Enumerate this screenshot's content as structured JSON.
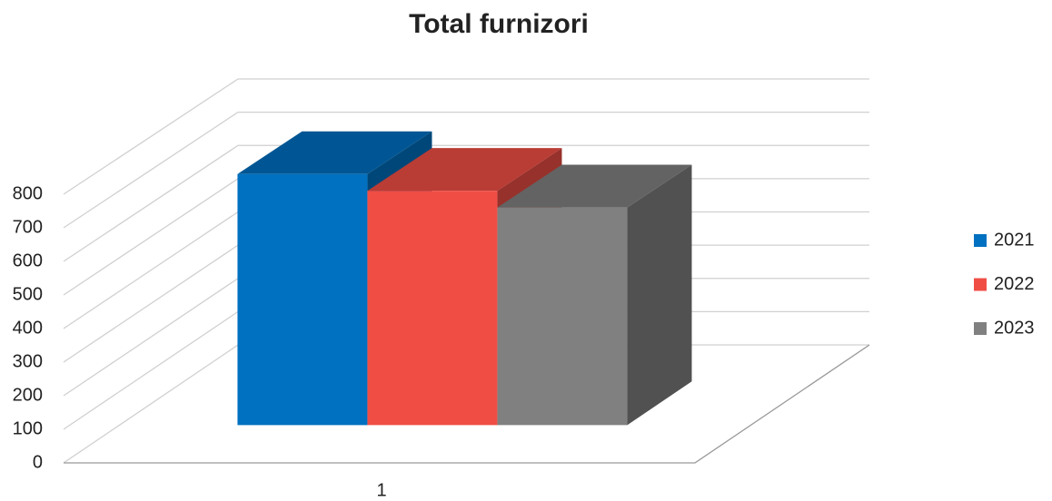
{
  "chart_data": {
    "type": "bar3d",
    "title": "Total furnizori",
    "categories": [
      "1"
    ],
    "series": [
      {
        "name": "2021",
        "color": "#0070c0",
        "values": [
          750
        ]
      },
      {
        "name": "2022",
        "color": "#f04e45",
        "values": [
          700
        ]
      },
      {
        "name": "2023",
        "color": "#808080",
        "values": [
          650
        ]
      }
    ],
    "ylim": [
      0,
      800
    ],
    "yticks": [
      0,
      100,
      200,
      300,
      400,
      500,
      600,
      700,
      800
    ],
    "grid": true,
    "legend": "right"
  }
}
